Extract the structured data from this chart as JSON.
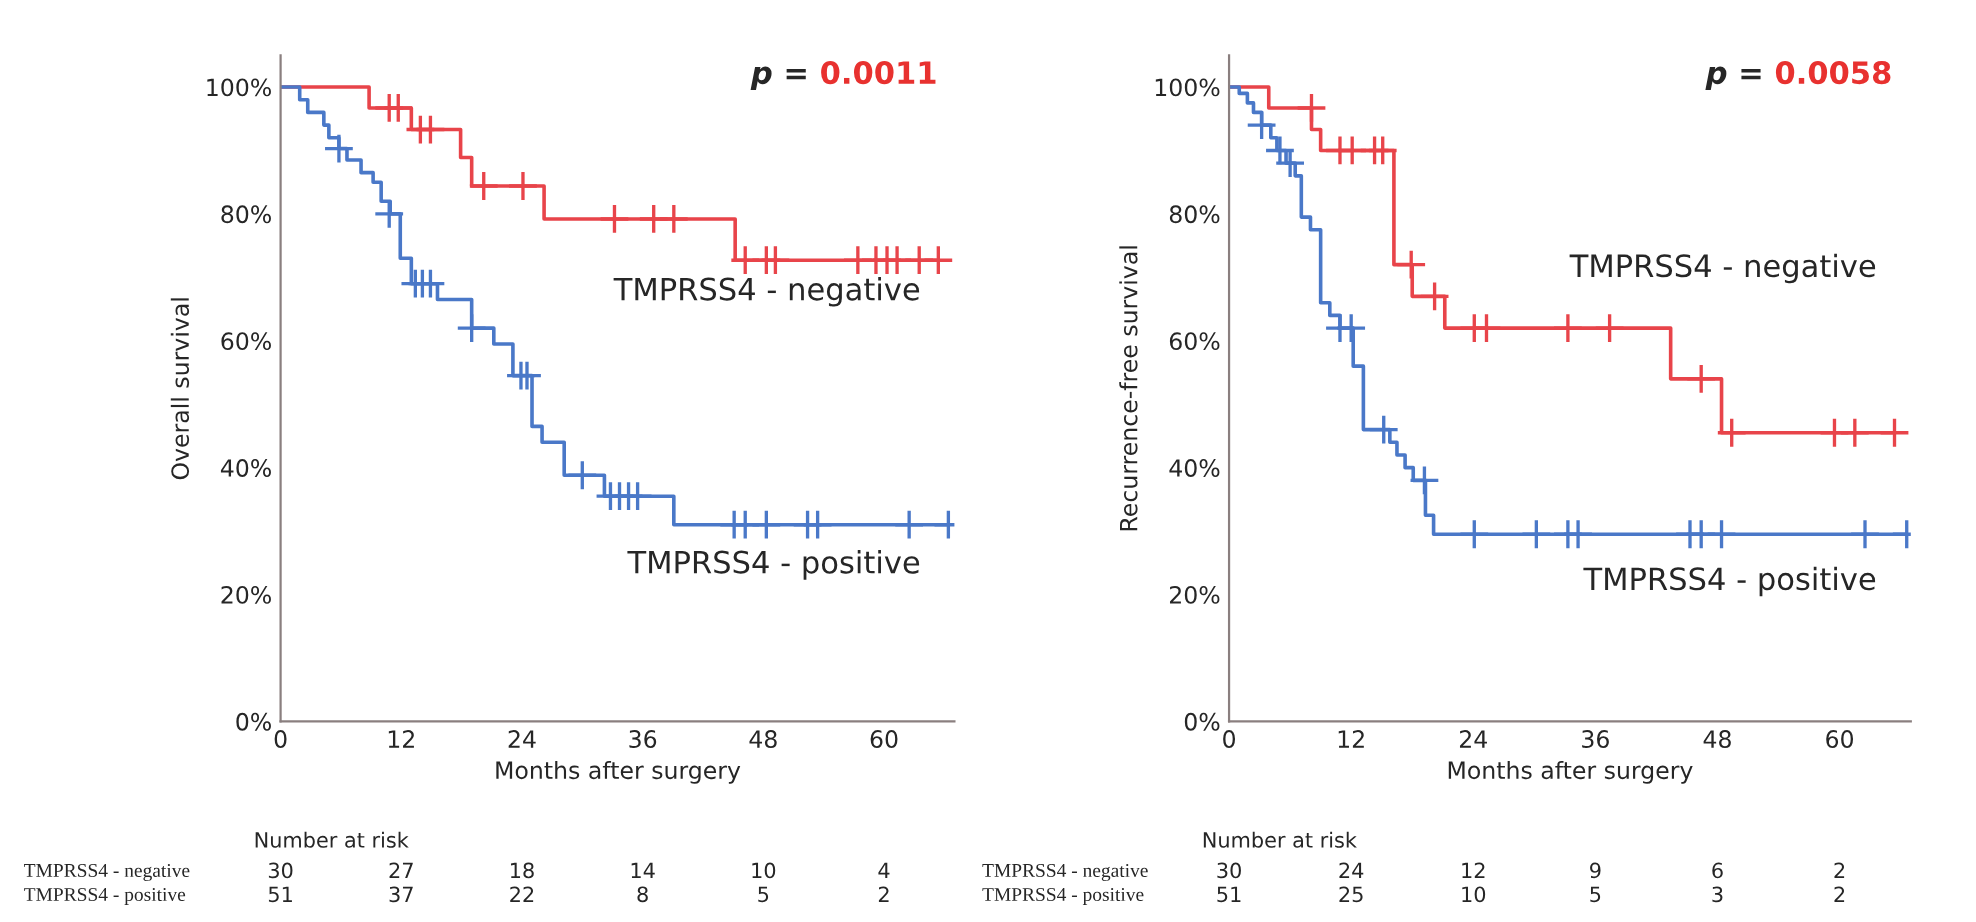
{
  "chart_data": [
    {
      "type": "step",
      "ylabel": "Overall survival",
      "xlabel": "Months after surgery",
      "xlim": [
        0,
        67
      ],
      "xticks": [
        0,
        12,
        24,
        36,
        48,
        60
      ],
      "ylim": [
        0,
        105
      ],
      "yticks": [
        {
          "value": 0,
          "label": "0%"
        },
        {
          "value": 20,
          "label": "20%"
        },
        {
          "value": 40,
          "label": "40%"
        },
        {
          "value": 60,
          "label": "60%"
        },
        {
          "value": 80,
          "label": "80%"
        },
        {
          "value": 100,
          "label": "100%"
        }
      ],
      "grid": false,
      "line_style": "solid",
      "series": [
        {
          "name": "TMPRSS4 - negative",
          "color": "#e8444a",
          "x": [
            0,
            8.8,
            13,
            17.9,
            19,
            26.2,
            45.2,
            65.4
          ],
          "values": [
            100,
            96.7,
            93.3,
            88.9,
            84.4,
            79.2,
            72.7,
            72.7
          ]
        },
        {
          "name": "TMPRSS4 - positive",
          "color": "#4a78c8",
          "x": [
            0,
            1.9,
            2.7,
            4.3,
            4.8,
            5.8,
            6.6,
            8,
            9.2,
            10,
            10.9,
            11.9,
            13,
            15.6,
            19,
            21.2,
            23.1,
            25,
            26,
            28.2,
            32.2,
            39.1,
            66.4
          ],
          "values": [
            100,
            98,
            96,
            94,
            92,
            90.3,
            88.5,
            86.5,
            85,
            82,
            80,
            73,
            69,
            66.5,
            62,
            59.5,
            54.5,
            46.5,
            44,
            38.8,
            35.5,
            31,
            31
          ]
        },
        {
          "type": "scatter",
          "marker": "cross",
          "color": "#e8444a",
          "x": [
            10.8,
            11.7,
            13.9,
            14.9,
            20.2,
            24.1,
            33.2,
            37.1,
            39.1,
            46.2,
            48.3,
            49.2,
            57.4,
            59.2,
            60.3,
            61.3,
            63.5,
            65.4
          ],
          "values": [
            96.7,
            96.7,
            93.3,
            93.3,
            84.4,
            84.4,
            79.2,
            79.2,
            79.2,
            72.7,
            72.7,
            72.7,
            72.7,
            72.7,
            72.7,
            72.7,
            72.7,
            72.7
          ]
        },
        {
          "type": "scatter",
          "marker": "cross",
          "color": "#4a78c8",
          "x": [
            5.8,
            10.8,
            13.4,
            14.1,
            14.9,
            19,
            23.9,
            24.5,
            30,
            32.8,
            33.7,
            34.6,
            35.5,
            45.1,
            46.2,
            48.3,
            52.4,
            53.4,
            62.5,
            66.4
          ],
          "values": [
            90.3,
            80,
            69,
            69,
            69,
            62,
            54.5,
            54.5,
            38.8,
            35.5,
            35.5,
            35.5,
            35.5,
            31,
            31,
            31,
            31,
            31,
            31,
            31
          ]
        }
      ],
      "annotations": [
        "p =",
        "0.0011",
        "Number at risk",
        "TMPRSS4 - negative",
        "30",
        "27",
        "18",
        "14",
        "10",
        "4",
        "TMPRSS4 - positive",
        "51",
        "37",
        "22",
        "8",
        "5",
        "2"
      ]
    },
    {
      "type": "step",
      "ylabel": "Recurrence-free survival",
      "xlabel": "Months after surgery",
      "xlim": [
        0,
        67
      ],
      "xticks": [
        0,
        12,
        24,
        36,
        48,
        60
      ],
      "ylim": [
        0,
        105
      ],
      "yticks": [
        {
          "value": 0,
          "label": "0%"
        },
        {
          "value": 20,
          "label": "20%"
        },
        {
          "value": 40,
          "label": "40%"
        },
        {
          "value": 60,
          "label": "60%"
        },
        {
          "value": 80,
          "label": "80%"
        },
        {
          "value": 100,
          "label": "100%"
        }
      ],
      "grid": false,
      "line_style": "solid",
      "series": [
        {
          "name": "TMPRSS4 - negative",
          "color": "#e8444a",
          "x": [
            0,
            3.9,
            8.1,
            9,
            16.2,
            18,
            21.2,
            43.4,
            48.4,
            65.4
          ],
          "values": [
            100,
            96.7,
            93.3,
            90,
            72,
            67,
            62,
            54,
            45.5,
            45.5
          ]
        },
        {
          "name": "TMPRSS4 - positive",
          "color": "#4a78c8",
          "x": [
            0,
            1,
            1.8,
            2.4,
            3.2,
            4.1,
            4.7,
            5.6,
            6.5,
            7.1,
            8,
            9,
            9.9,
            10.9,
            12.2,
            13.2,
            15.8,
            16.5,
            17.3,
            18.1,
            19.3,
            20.1,
            66.6
          ],
          "values": [
            100,
            99,
            97.5,
            96,
            94,
            92,
            90,
            88,
            86,
            79.5,
            77.5,
            66,
            64,
            62,
            56,
            46,
            44,
            42,
            40,
            38,
            32.5,
            29.5,
            29.5
          ]
        },
        {
          "type": "scatter",
          "marker": "cross",
          "color": "#e8444a",
          "x": [
            8.1,
            10.9,
            12.1,
            14.3,
            15.1,
            17.9,
            20.2,
            24.1,
            25.3,
            33.3,
            37.4,
            46.4,
            49.4,
            59.5,
            61.5,
            65.4
          ],
          "values": [
            96.7,
            90,
            90,
            90,
            90,
            72,
            67,
            62,
            62,
            62,
            62,
            54,
            45.5,
            45.5,
            45.5,
            45.5
          ]
        },
        {
          "type": "scatter",
          "marker": "cross",
          "color": "#4a78c8",
          "x": [
            3.2,
            5,
            6,
            10.9,
            12,
            15.2,
            19.2,
            24.1,
            30.2,
            33.3,
            34.3,
            45.3,
            46.4,
            48.4,
            62.5,
            66.6
          ],
          "values": [
            94,
            90,
            88,
            62,
            62,
            46,
            38,
            29.5,
            29.5,
            29.5,
            29.5,
            29.5,
            29.5,
            29.5,
            29.5,
            29.5
          ]
        }
      ],
      "annotations": [
        "p =",
        "0.0058",
        "Number at risk",
        "TMPRSS4 - negative",
        "30",
        "24",
        "12",
        "9",
        "6",
        "2",
        "TMPRSS4 - positive",
        "51",
        "25",
        "10",
        "5",
        "3",
        "2"
      ]
    }
  ]
}
